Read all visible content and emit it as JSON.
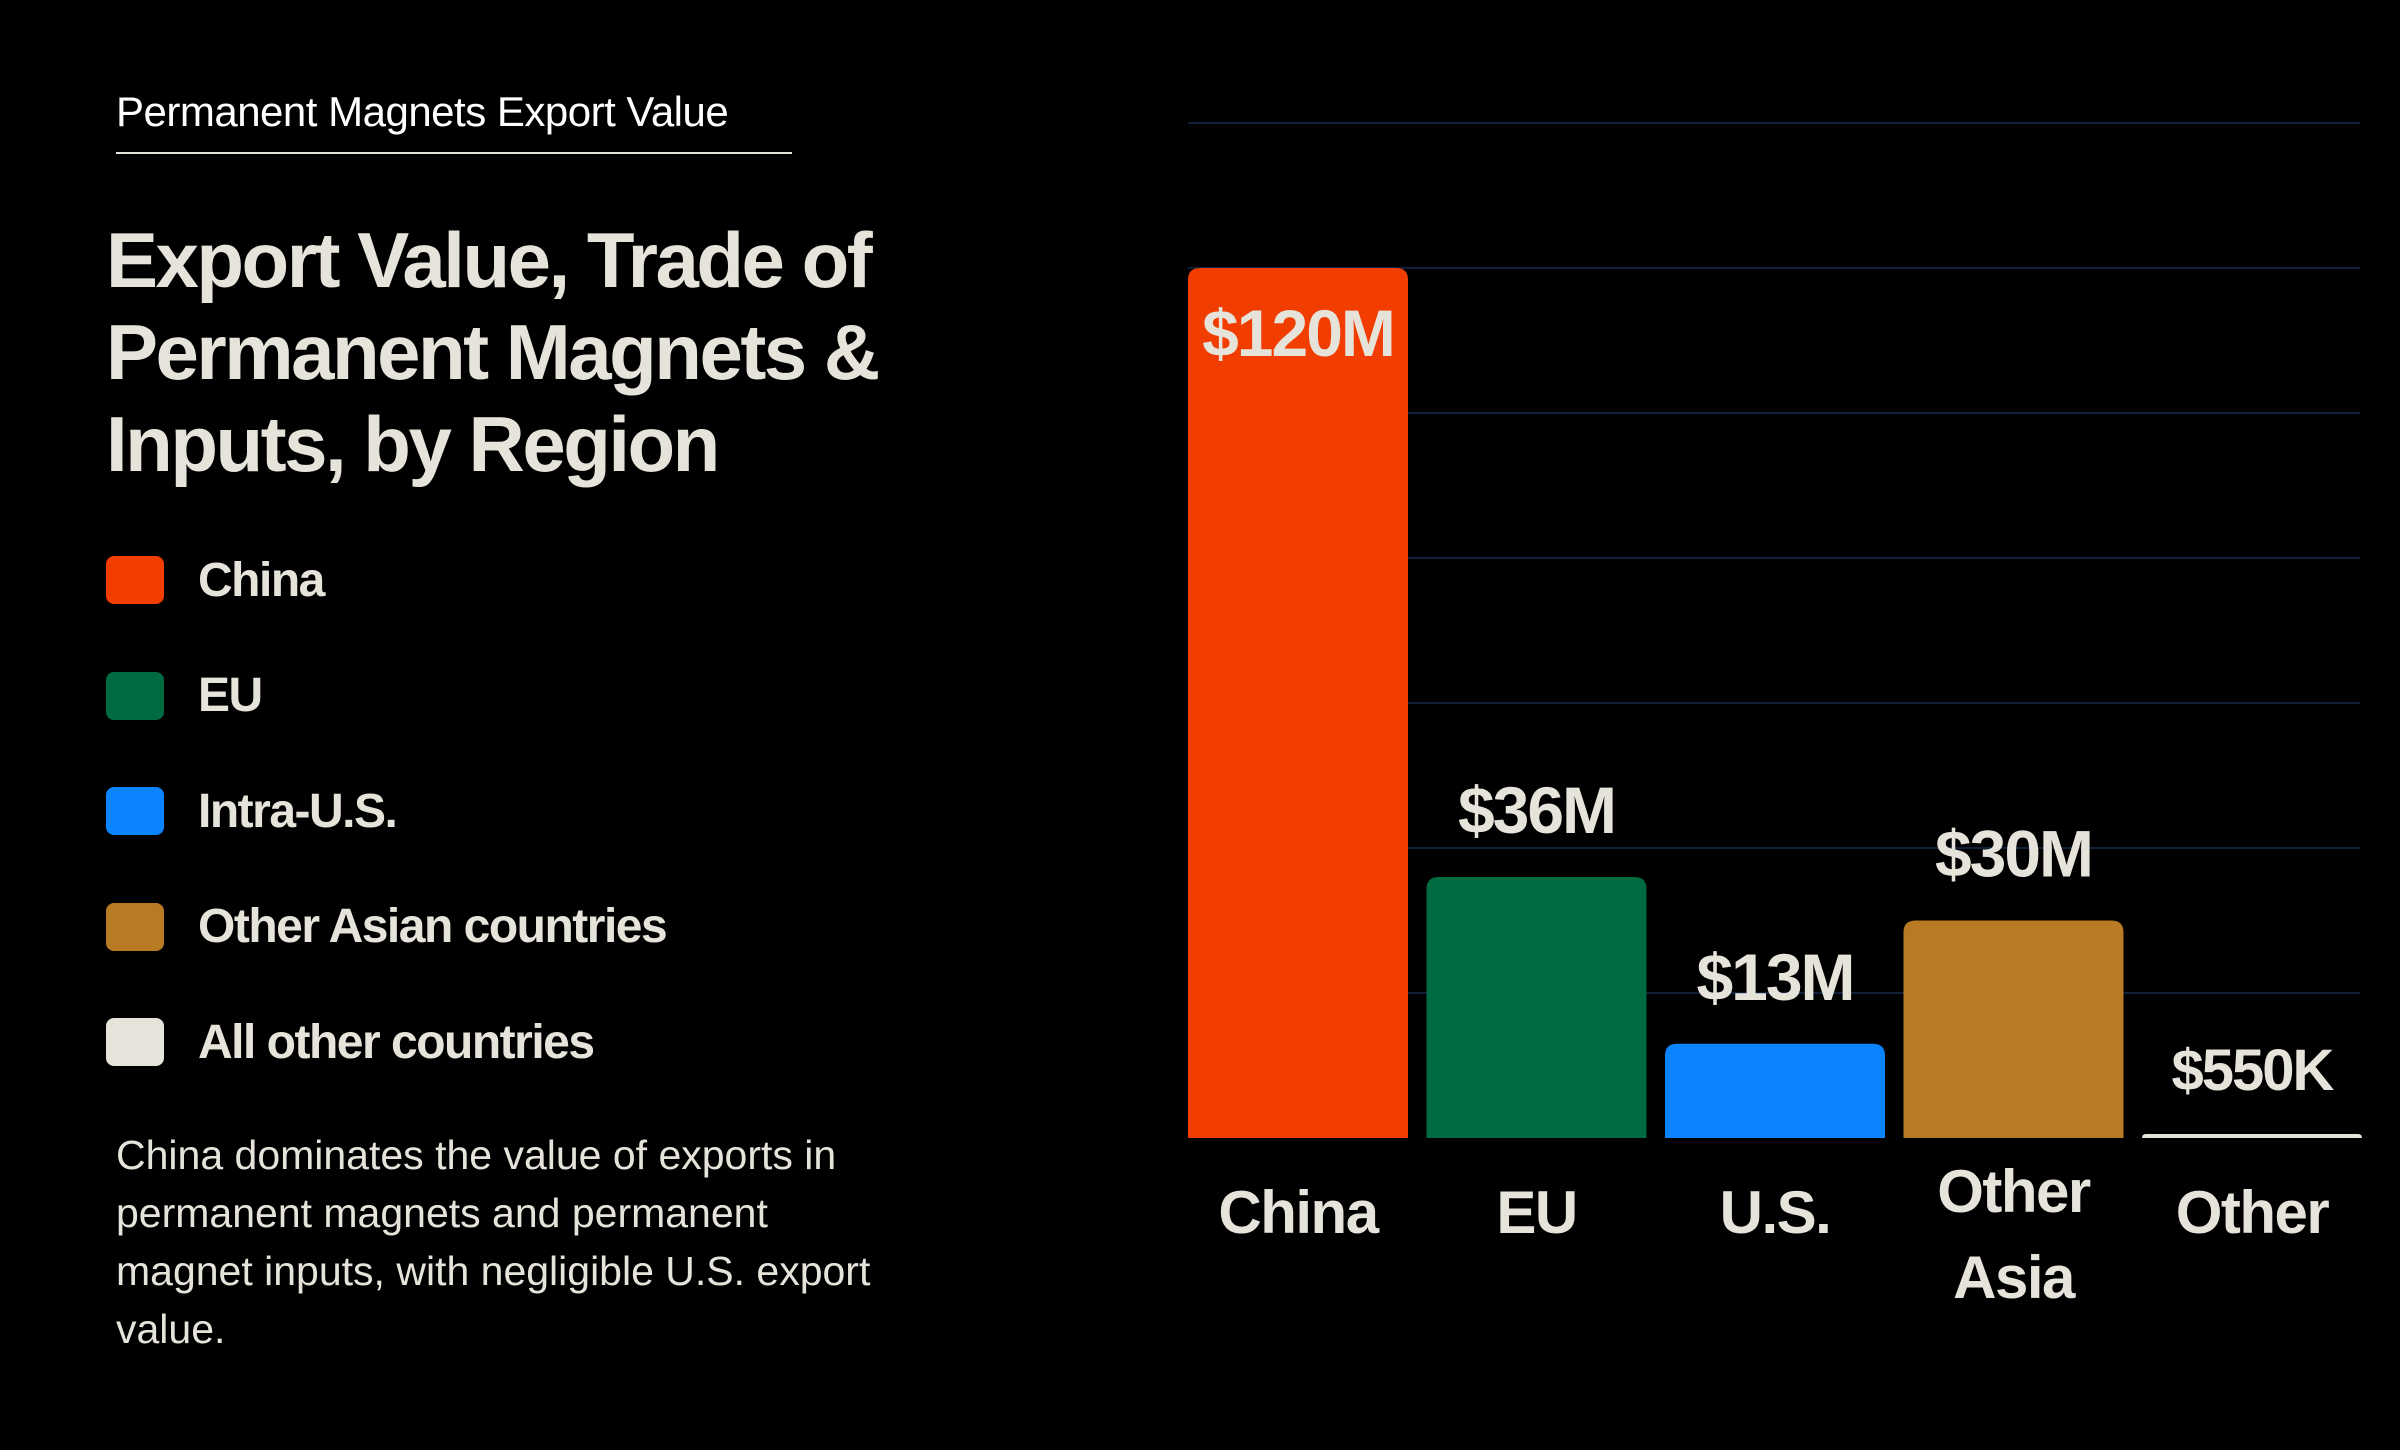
{
  "eyebrow": "Permanent Magnets Export Value",
  "title": "Export Value, Trade of Permanent  Magnets & Inputs, by Region",
  "legend": [
    {
      "label": "China",
      "color": "#f23d00"
    },
    {
      "label": "EU",
      "color": "#006b40"
    },
    {
      "label": "Intra-U.S.",
      "color": "#0a84ff"
    },
    {
      "label": "Other Asian countries",
      "color": "#b87a22"
    },
    {
      "label": "All other countries",
      "color": "#e6e3da"
    }
  ],
  "caption": "China dominates the value of exports in permanent magnets and permanent magnet inputs, with negligible U.S. export value.",
  "chart_data": {
    "type": "bar",
    "categories": [
      [
        "China"
      ],
      [
        "EU"
      ],
      [
        "U.S."
      ],
      [
        "Other",
        "Asia"
      ],
      [
        "Other"
      ]
    ],
    "values": [
      120,
      36,
      13,
      30,
      0.55
    ],
    "data_labels": [
      "$120M",
      "$36M",
      "$13M",
      "$30M",
      "$550K"
    ],
    "colors": [
      "#f23d00",
      "#006b40",
      "#0a84ff",
      "#b87a22",
      "#e6e3da"
    ],
    "unit": "$M",
    "ylim": [
      0,
      140
    ],
    "grid": true,
    "grid_step": 20,
    "grid_color": "#10203a",
    "legend_position": "left"
  }
}
